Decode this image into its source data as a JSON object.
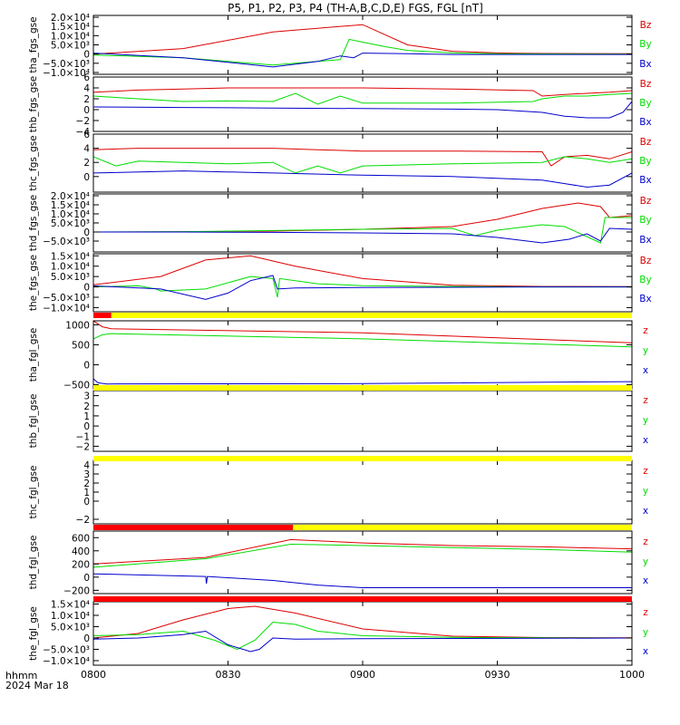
{
  "title": "P5, P1, P2, P3, P4 (TH-A,B,C,D,E) FGS, FGL [nT]",
  "x_axis": {
    "range": [
      0,
      120
    ],
    "tick_values": [
      0,
      30,
      60,
      90,
      120
    ],
    "tick_labels": [
      "0800",
      "0830",
      "0900",
      "0930",
      "1000"
    ],
    "label": "hhmm",
    "date": "2024 Mar 18"
  },
  "colors": {
    "z": "#dd0000",
    "y": "#00dd00",
    "x": "#0000cc",
    "bar_yellow": "#ffff00",
    "bar_red": "#ff0000",
    "axes": "#000000"
  },
  "chart_data": [
    {
      "type": "line",
      "ylabel": "tha_fgs_gse",
      "ylim": [
        -11000.0,
        21000.0
      ],
      "ytick_values": [
        -10000,
        -5000,
        0,
        5000,
        10000,
        15000,
        20000
      ],
      "ytick_labels": [
        "−1.0×10⁴",
        "−5.0×10³",
        "0",
        "5.0×10³",
        "1.0×10⁴",
        "1.5×10⁴",
        "2.0×10⁴"
      ],
      "series": [
        {
          "name": "Bz",
          "color": "#dd0000",
          "x": [
            0,
            20,
            40,
            60,
            70,
            80,
            90,
            95,
            100,
            120
          ],
          "y": [
            0,
            3000,
            12000,
            16000,
            5000,
            1500,
            600,
            400,
            300,
            200
          ]
        },
        {
          "name": "By",
          "color": "#00dd00",
          "x": [
            0,
            20,
            40,
            55,
            57,
            60,
            65,
            70,
            80,
            90,
            100,
            120
          ],
          "y": [
            -500,
            -2000,
            -6000,
            -3000,
            8000,
            6500,
            4000,
            2000,
            600,
            200,
            100,
            0
          ]
        },
        {
          "name": "Bx",
          "color": "#0000cc",
          "x": [
            0,
            20,
            40,
            50,
            55,
            58,
            60,
            70,
            80,
            100,
            120
          ],
          "y": [
            500,
            -2000,
            -7000,
            -4000,
            -1000,
            -2000,
            500,
            200,
            -200,
            -200,
            -200
          ]
        }
      ]
    },
    {
      "type": "line",
      "ylabel": "thb_fgs_gse",
      "ylim": [
        -4,
        6
      ],
      "ytick_values": [
        -4,
        -2,
        0,
        2,
        4,
        6
      ],
      "ytick_labels": [
        "−4",
        "−2",
        "0",
        "2",
        "4",
        "6"
      ],
      "series": [
        {
          "name": "Bz",
          "color": "#dd0000",
          "x": [
            0,
            10,
            20,
            30,
            40,
            60,
            80,
            98,
            100,
            105,
            110,
            115,
            120
          ],
          "y": [
            3.2,
            3.6,
            3.8,
            4,
            4,
            4,
            3.8,
            3.5,
            2.5,
            2.8,
            3,
            3.2,
            3.5
          ]
        },
        {
          "name": "By",
          "color": "#00dd00",
          "x": [
            0,
            10,
            20,
            30,
            40,
            45,
            50,
            55,
            60,
            80,
            98,
            100,
            105,
            110,
            115,
            120
          ],
          "y": [
            2.5,
            2,
            1.5,
            1.6,
            1.5,
            3,
            1,
            2.5,
            1.2,
            1.2,
            1.5,
            2,
            2.5,
            2.5,
            2.8,
            3
          ]
        },
        {
          "name": "Bx",
          "color": "#0000cc",
          "x": [
            0,
            20,
            40,
            60,
            80,
            90,
            100,
            105,
            110,
            115,
            118,
            120
          ],
          "y": [
            0.5,
            0.4,
            0.3,
            0.2,
            0.1,
            0,
            -0.5,
            -1.2,
            -1.5,
            -1.5,
            -0.5,
            1.5
          ]
        }
      ]
    },
    {
      "type": "line",
      "ylabel": "thc_fgs_gse",
      "ylim": [
        -2.2,
        6
      ],
      "ytick_values": [
        0,
        2,
        4,
        6
      ],
      "ytick_labels": [
        "0",
        "2",
        "4",
        "6"
      ],
      "series": [
        {
          "name": "Bz",
          "color": "#dd0000",
          "x": [
            0,
            10,
            20,
            30,
            40,
            50,
            60,
            80,
            100,
            102,
            105,
            110,
            115,
            120
          ],
          "y": [
            3.8,
            4,
            4,
            4,
            4,
            3.8,
            3.6,
            3.6,
            3.5,
            1.5,
            2.8,
            3,
            2.5,
            3.5
          ]
        },
        {
          "name": "By",
          "color": "#00dd00",
          "x": [
            0,
            5,
            10,
            20,
            30,
            40,
            45,
            50,
            55,
            60,
            80,
            100,
            105,
            110,
            115,
            120
          ],
          "y": [
            2.8,
            1.5,
            2.2,
            2,
            1.8,
            2,
            0.5,
            1.5,
            0.5,
            1.5,
            1.8,
            2,
            2.8,
            2.5,
            2,
            2.5
          ]
        },
        {
          "name": "Bx",
          "color": "#0000cc",
          "x": [
            0,
            20,
            40,
            60,
            80,
            100,
            105,
            110,
            115,
            120
          ],
          "y": [
            0.5,
            0.8,
            0.5,
            0.2,
            0,
            -0.5,
            -1,
            -1.5,
            -1.2,
            0.5
          ]
        }
      ]
    },
    {
      "type": "line",
      "ylabel": "thd_fgs_gse",
      "ylim": [
        -11000.0,
        21000.0
      ],
      "ytick_values": [
        -5000,
        0,
        5000,
        10000,
        15000,
        20000
      ],
      "ytick_labels": [
        "−5.0×10³",
        "0",
        "5.0×10³",
        "1.0×10⁴",
        "1.5×10⁴",
        "2.0×10⁴"
      ],
      "series": [
        {
          "name": "Bz",
          "color": "#dd0000",
          "x": [
            0,
            20,
            40,
            60,
            80,
            90,
            100,
            108,
            113,
            115,
            120
          ],
          "y": [
            0,
            100,
            500,
            1500,
            3000,
            7000,
            13000,
            16000,
            14000,
            8000,
            9000
          ]
        },
        {
          "name": "By",
          "color": "#00dd00",
          "x": [
            0,
            20,
            40,
            60,
            80,
            85,
            90,
            100,
            105,
            113,
            114,
            120
          ],
          "y": [
            0,
            200,
            800,
            1500,
            2000,
            -2000,
            1000,
            4000,
            3000,
            -6000,
            8000,
            8000
          ]
        },
        {
          "name": "Bx",
          "color": "#0000cc",
          "x": [
            0,
            20,
            40,
            60,
            80,
            90,
            100,
            106,
            110,
            113,
            115,
            120
          ],
          "y": [
            0,
            0,
            -200,
            -500,
            -1000,
            -3000,
            -6000,
            -4000,
            -1000,
            -5000,
            2000,
            1500
          ]
        }
      ]
    },
    {
      "type": "line",
      "ylabel": "the_fgs_gse",
      "ylim": [
        -12000.0,
        16000.0
      ],
      "ytick_values": [
        -10000,
        -5000,
        0,
        5000,
        10000,
        15000
      ],
      "ytick_labels": [
        "−1.0×10⁴",
        "−5.0×10³",
        "0",
        "5.0×10³",
        "1.0×10⁴",
        "1.5×10⁴"
      ],
      "series": [
        {
          "name": "Bz",
          "color": "#dd0000",
          "x": [
            0,
            15,
            25,
            35,
            45,
            60,
            80,
            100,
            120
          ],
          "y": [
            1000,
            5000,
            13000,
            15000,
            10000,
            4000,
            800,
            200,
            100
          ]
        },
        {
          "name": "By",
          "color": "#00dd00",
          "x": [
            0,
            10,
            14,
            15,
            25,
            35,
            40,
            41,
            41.5,
            50,
            60,
            80,
            100,
            120
          ],
          "y": [
            0,
            500,
            -1000,
            -2000,
            -1000,
            5000,
            4000,
            -5000,
            4000,
            1500,
            600,
            200,
            0,
            0
          ]
        },
        {
          "name": "Bx",
          "color": "#0000cc",
          "x": [
            0,
            15,
            25,
            30,
            35,
            40,
            41,
            45,
            60,
            80,
            100,
            120
          ],
          "y": [
            500,
            -1000,
            -6000,
            -3000,
            3000,
            5500,
            -1000,
            -500,
            -300,
            -200,
            0,
            0
          ]
        }
      ]
    },
    {
      "type": "line",
      "ylabel": "tha_fgl_gse",
      "ylim": [
        -600,
        1100
      ],
      "ytick_values": [
        -500,
        0,
        500,
        1000
      ],
      "ytick_labels": [
        "−500",
        "0",
        "500",
        "1000"
      ],
      "series": [
        {
          "name": "z",
          "color": "#dd0000",
          "x": [
            0,
            2,
            4,
            60,
            120
          ],
          "y": [
            1100,
            950,
            900,
            800,
            550
          ]
        },
        {
          "name": "y",
          "color": "#00dd00",
          "x": [
            0,
            2,
            4,
            60,
            120
          ],
          "y": [
            650,
            750,
            780,
            650,
            450
          ]
        },
        {
          "name": "x",
          "color": "#0000cc",
          "x": [
            0,
            1,
            3,
            60,
            120
          ],
          "y": [
            -350,
            -450,
            -480,
            -470,
            -420
          ]
        }
      ]
    },
    {
      "type": "line",
      "ylabel": "thb_fgl_gse",
      "ylim": [
        -2.5,
        3.5
      ],
      "ytick_values": [
        -2,
        -1,
        0,
        1,
        2,
        3
      ],
      "ytick_labels": [
        "−2",
        "−1",
        "0",
        "1",
        "2",
        "3"
      ],
      "series": []
    },
    {
      "type": "line",
      "ylabel": "thc_fgl_gse",
      "ylim": [
        -2.5,
        4.5
      ],
      "ytick_values": [
        -2,
        0,
        1,
        2,
        3,
        4
      ],
      "ytick_labels": [
        "−2",
        "0",
        "1",
        "2",
        "3",
        "4"
      ],
      "series": []
    },
    {
      "type": "line",
      "ylabel": "thd_fgl_gse",
      "ylim": [
        -250,
        700
      ],
      "ytick_values": [
        -200,
        0,
        200,
        400,
        600
      ],
      "ytick_labels": [
        "−200",
        "0",
        "200",
        "400",
        "600"
      ],
      "series": [
        {
          "name": "z",
          "color": "#dd0000",
          "x": [
            0,
            25,
            44,
            60,
            80,
            100,
            120
          ],
          "y": [
            200,
            300,
            570,
            520,
            480,
            460,
            430
          ]
        },
        {
          "name": "y",
          "color": "#00dd00",
          "x": [
            0,
            25,
            44,
            60,
            80,
            100,
            120
          ],
          "y": [
            150,
            280,
            500,
            480,
            450,
            420,
            380
          ]
        },
        {
          "name": "x",
          "color": "#0000cc",
          "x": [
            0,
            25,
            25.2,
            25.4,
            40,
            50,
            60,
            120
          ],
          "y": [
            50,
            10,
            -100,
            10,
            -50,
            -120,
            -160,
            -160
          ]
        }
      ]
    },
    {
      "type": "line",
      "ylabel": "the_fgl_gse",
      "ylim": [
        -12000.0,
        16000.0
      ],
      "ytick_values": [
        -10000,
        -5000,
        0,
        5000,
        10000,
        15000
      ],
      "ytick_labels": [
        "−1.0×10⁴",
        "−5.0×10³",
        "0",
        "5.0×10³",
        "1.0×10⁴",
        "1.5×10⁴"
      ],
      "series": [
        {
          "name": "z",
          "color": "#dd0000",
          "x": [
            0,
            10,
            20,
            30,
            36,
            45,
            60,
            80,
            100,
            120
          ],
          "y": [
            0,
            2000,
            8000,
            13000,
            14000,
            11000,
            4000,
            800,
            200,
            100
          ]
        },
        {
          "name": "y",
          "color": "#00dd00",
          "x": [
            0,
            10,
            20,
            27,
            32,
            36,
            40,
            45,
            50,
            60,
            80,
            100,
            120
          ],
          "y": [
            1000,
            1500,
            3000,
            -1000,
            -5000,
            -1000,
            7000,
            6000,
            3000,
            1000,
            300,
            100,
            0
          ]
        },
        {
          "name": "x",
          "color": "#0000cc",
          "x": [
            0,
            10,
            20,
            25,
            30,
            35,
            37,
            40,
            45,
            60,
            80,
            100,
            120
          ],
          "y": [
            -500,
            0,
            1500,
            3000,
            -3000,
            -6000,
            -5000,
            0,
            -500,
            -300,
            -200,
            -100,
            0
          ]
        }
      ]
    }
  ],
  "status_bars": [
    {
      "segments": [
        {
          "x0": 0,
          "x1": 4,
          "color": "#ff0000"
        },
        {
          "x0": 4,
          "x1": 120,
          "color": "#ffff00"
        }
      ]
    },
    {
      "segments": [
        {
          "x0": 0,
          "x1": 120,
          "color": "#ffff00"
        }
      ]
    },
    {
      "segments": [
        {
          "x0": 0,
          "x1": 120,
          "color": "#ffff00"
        }
      ]
    },
    {
      "segments": [
        {
          "x0": 0,
          "x1": 44.5,
          "color": "#ff0000"
        },
        {
          "x0": 44.5,
          "x1": 120,
          "color": "#ffff00"
        }
      ]
    },
    {
      "segments": [
        {
          "x0": 0,
          "x1": 120,
          "color": "#ff0000"
        }
      ]
    }
  ]
}
